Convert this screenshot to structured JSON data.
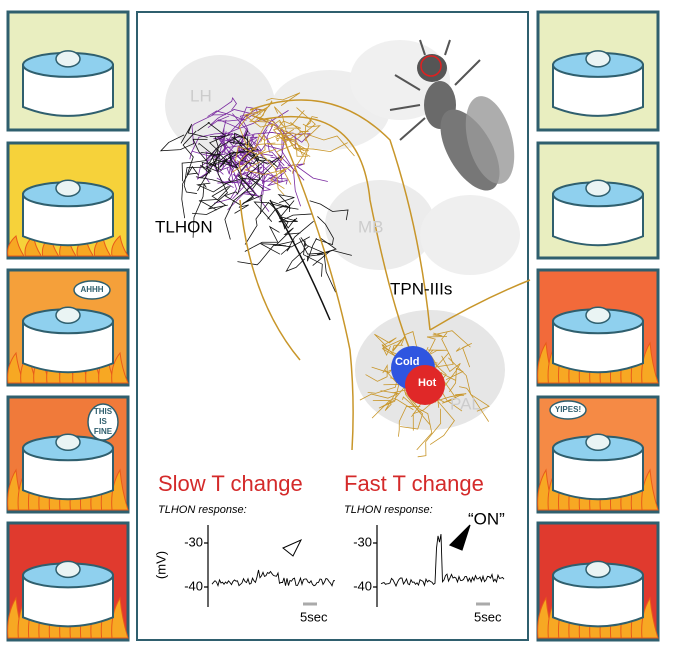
{
  "brain": {
    "regions": [
      "LH",
      "MB",
      "PAL"
    ],
    "neurons": [
      "TLHON",
      "TPN-IIIs"
    ],
    "zones": [
      "Cold",
      "Hot"
    ]
  },
  "plots": [
    {
      "title": "Slow T change",
      "subtitle": "TLHON response:",
      "yticks": [
        "-30",
        "-40"
      ],
      "ylabel": "(mV)",
      "scale_bar": "5sec"
    },
    {
      "title": "Fast T change",
      "subtitle": "TLHON response:",
      "yticks": [
        "-30",
        "-40"
      ],
      "scale_bar": "5sec",
      "annotation": "“ON”"
    }
  ],
  "speech": {
    "left": [
      "AHHH",
      [
        "THIS",
        "IS",
        "FINE"
      ]
    ],
    "right": [
      "YIPES!"
    ]
  }
}
